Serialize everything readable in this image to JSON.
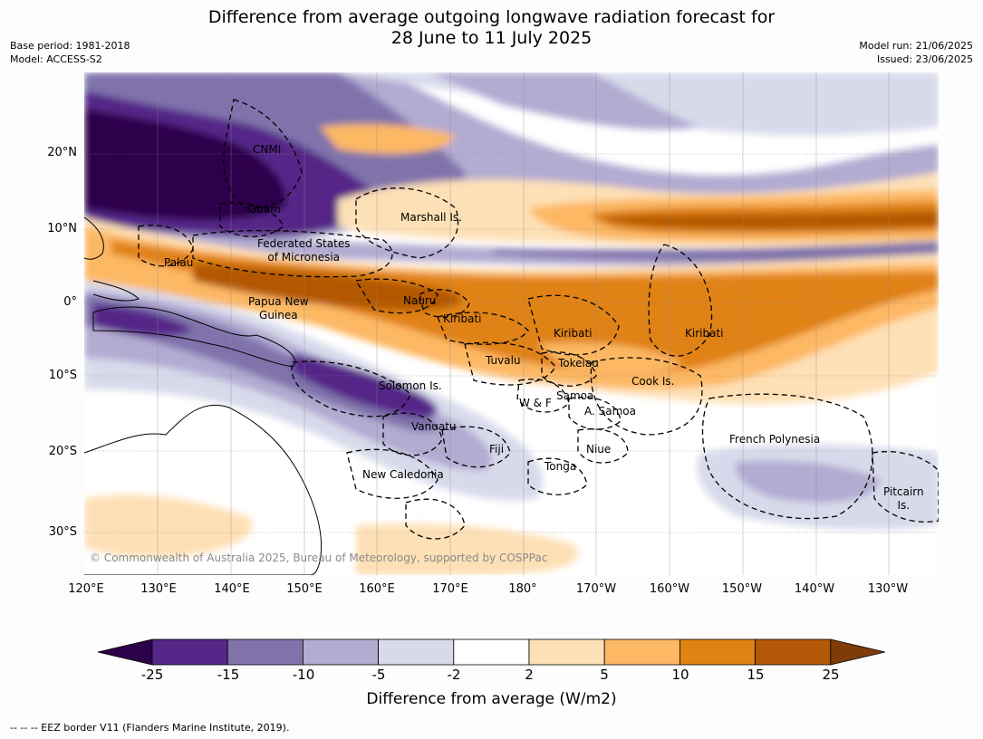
{
  "title": {
    "line1": "Difference from average outgoing longwave radiation forecast for",
    "line2": "28 June to 11 July 2025"
  },
  "meta": {
    "base_period": "Base period: 1981-2018",
    "model": "Model: ACCESS-S2",
    "model_run": "Model run: 21/06/2025",
    "issued": "Issued: 23/06/2025"
  },
  "axes": {
    "lat_labels": [
      "20°N",
      "10°N",
      "0°",
      "10°S",
      "20°S",
      "30°S"
    ],
    "lon_labels": [
      "120°E",
      "130°E",
      "140°E",
      "150°E",
      "160°E",
      "170°E",
      "180°",
      "170°W",
      "160°W",
      "150°W",
      "140°W",
      "130°W"
    ]
  },
  "regions": {
    "cnmi": "CNMI",
    "guam": "Guam",
    "marshall": "Marshall Is.",
    "fsm_line1": "Federated States",
    "fsm_line2": "of Micronesia",
    "palau": "Palau",
    "png_line1": "Papua New",
    "png_line2": "Guinea",
    "nauru": "Nauru",
    "kiribati_w": "Kiribati",
    "kiribati_c": "Kiribati",
    "kiribati_e": "Kiribati",
    "tuvalu": "Tuvalu",
    "tokelau": "Tokelau",
    "cook": "Cook Is.",
    "solomon": "Solomon Is.",
    "samoa": "Samoa",
    "wf": "W & F",
    "asamoa": "A. Samoa",
    "vanuatu": "Vanuatu",
    "fiji": "Fiji",
    "niue": "Niue",
    "tonga": "Tonga",
    "new_caledonia": "New Caledonia",
    "french_polynesia": "French Polynesia",
    "pitcairn_line1": "Pitcairn",
    "pitcairn_line2": "Is."
  },
  "copyright": "© Commonwealth of Australia 2025, Bureau of Meteorology, supported by COSPPac",
  "colorbar": {
    "title": "Difference from average (W/m2)",
    "tick_labels": [
      "-25",
      "-15",
      "-10",
      "-5",
      "-2",
      "2",
      "5",
      "10",
      "15",
      "25"
    ],
    "colors": {
      "under": "#2d004b",
      "bins": [
        "#542788",
        "#8073ac",
        "#b2abd2",
        "#d8daeb",
        "#ffffff",
        "#fee0b6",
        "#fdb863",
        "#e08214",
        "#b35806"
      ],
      "over": "#7f3b08"
    }
  },
  "footnote": "--  --  -- EEZ border V11 (Flanders Marine Institute, 2019)."
}
